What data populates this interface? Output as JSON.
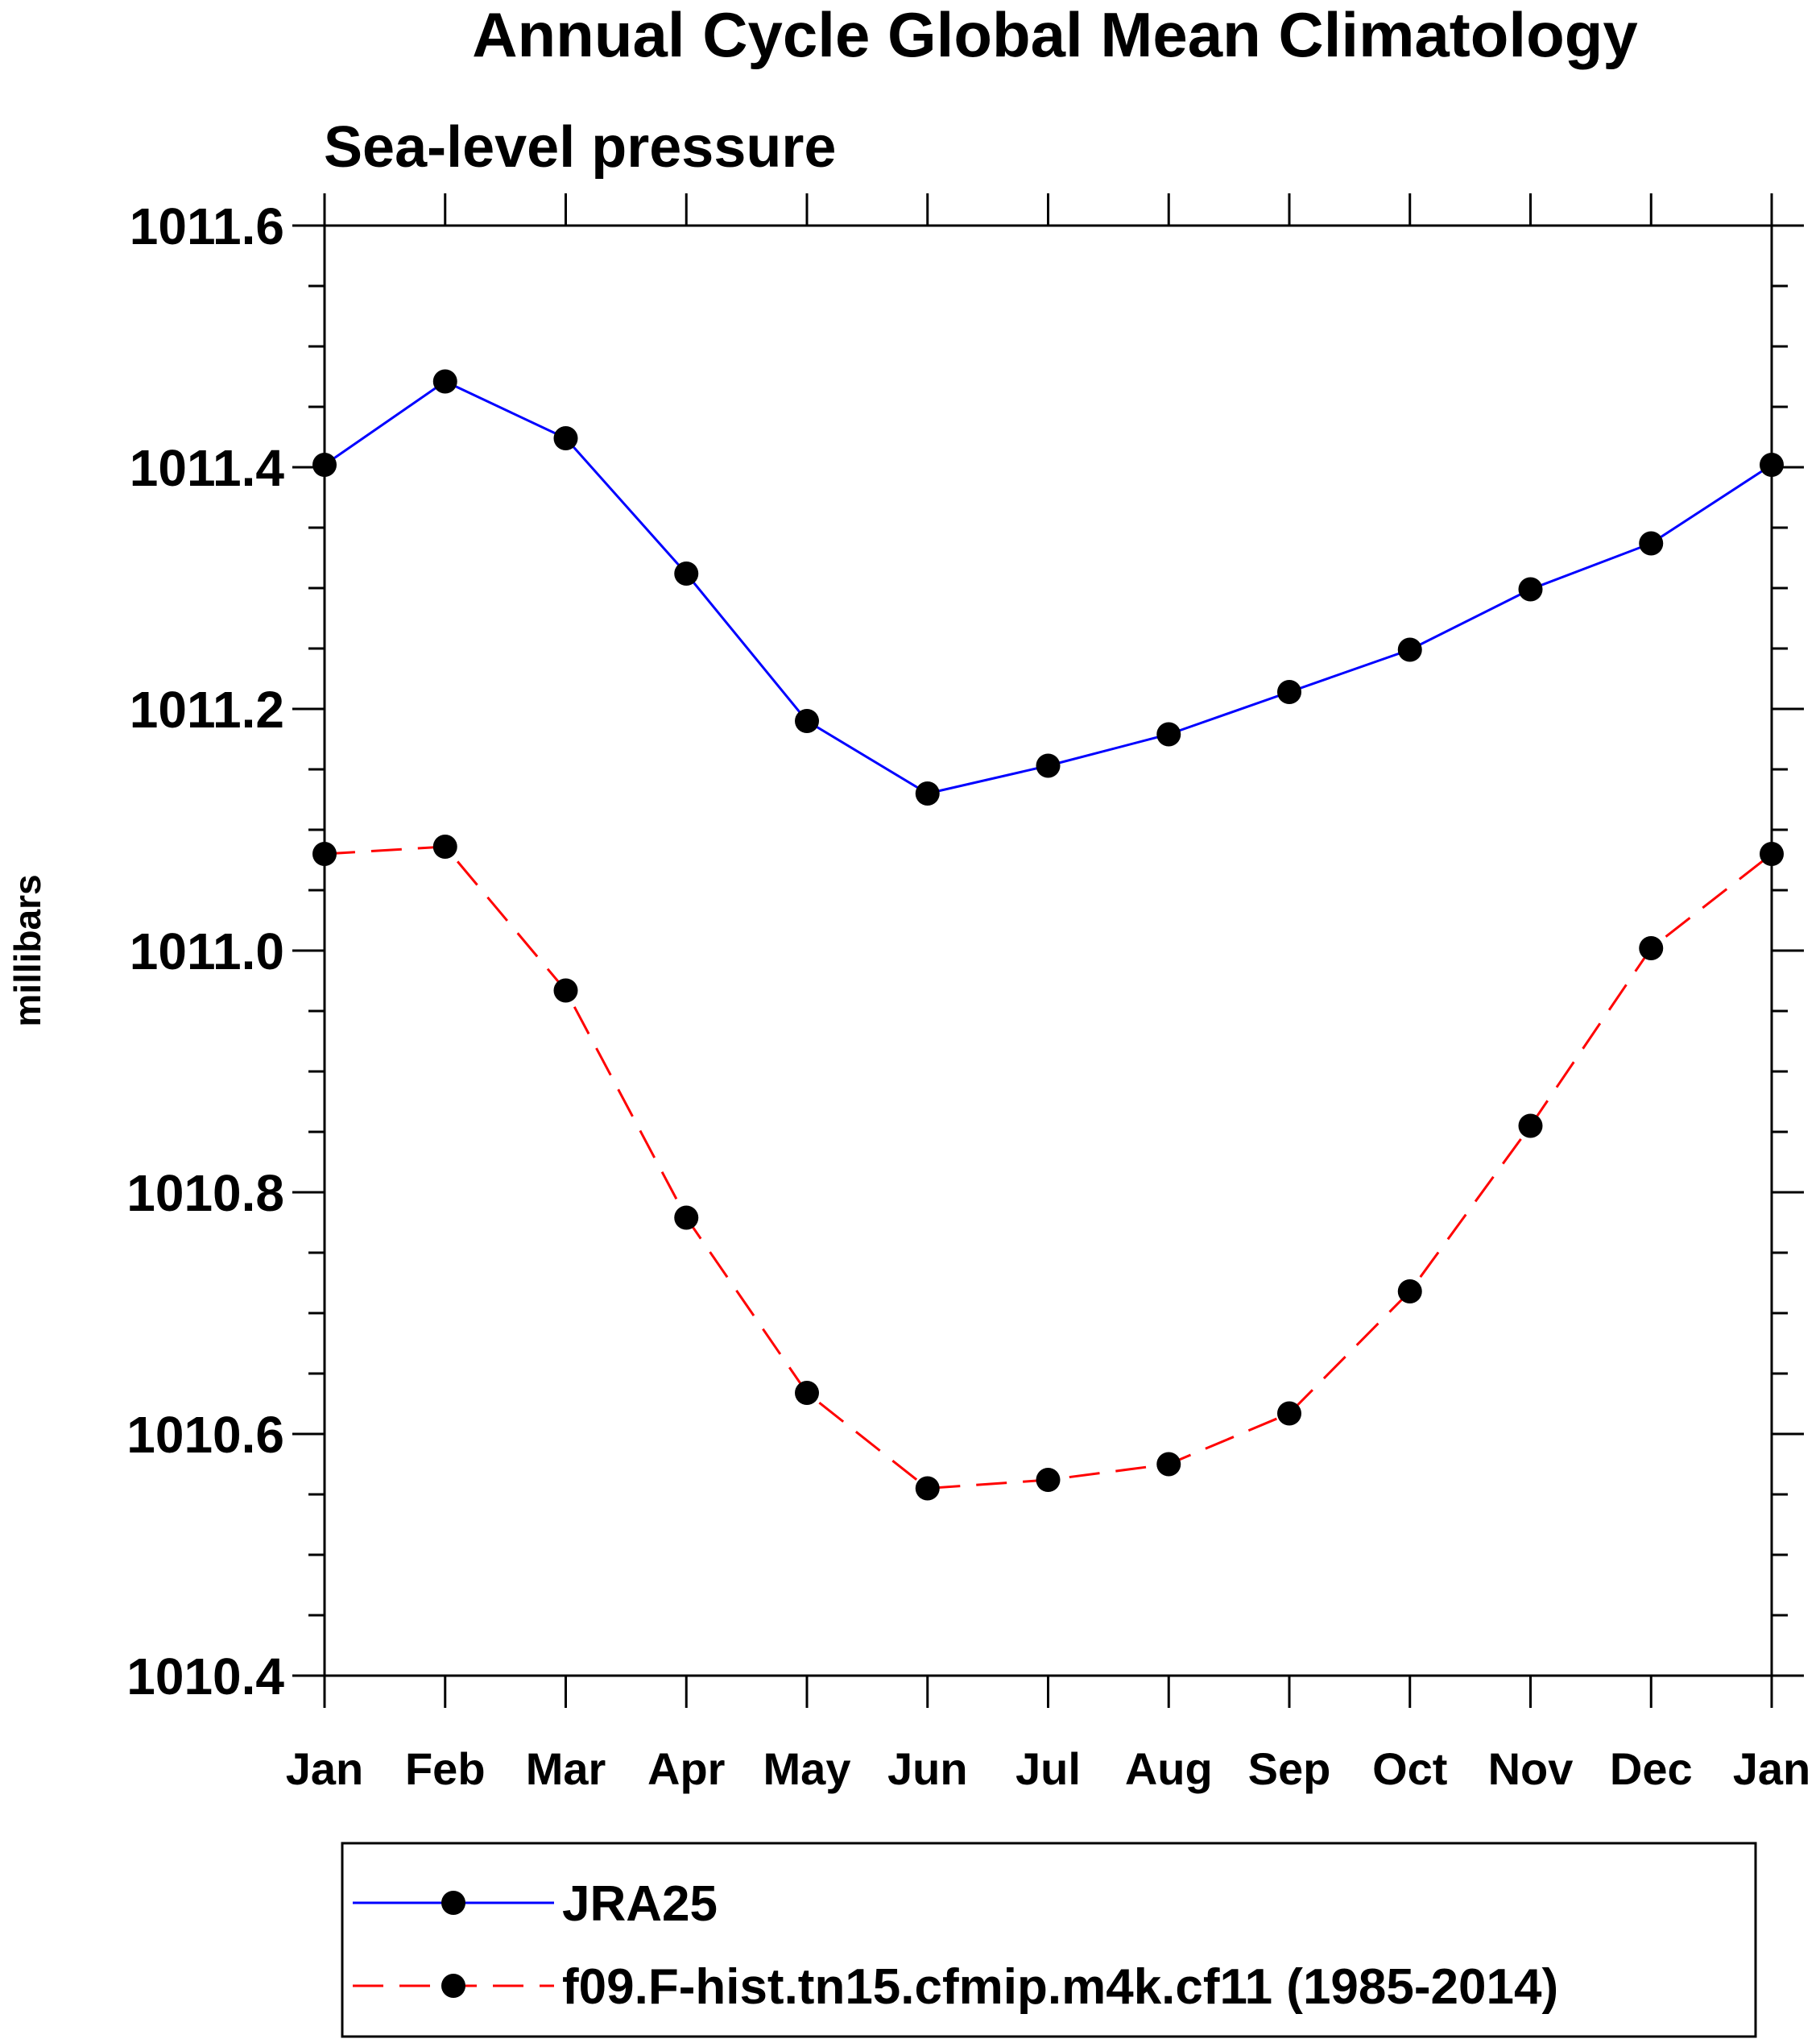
{
  "chart_data": {
    "type": "line",
    "title": "Annual Cycle Global Mean Climatology",
    "subtitle": "Sea-level pressure",
    "ylabel": "millibars",
    "xlabel": "",
    "categories": [
      "Jan",
      "Feb",
      "Mar",
      "Apr",
      "May",
      "Jun",
      "Jul",
      "Aug",
      "Sep",
      "Oct",
      "Nov",
      "Dec",
      "Jan"
    ],
    "ylim": [
      1010.4,
      1011.6
    ],
    "yticks": [
      "1010.4",
      "1010.6",
      "1010.8",
      "1011.0",
      "1011.2",
      "1011.4",
      "1011.6"
    ],
    "ytick_values": [
      1010.4,
      1010.6,
      1010.8,
      1011.0,
      1011.2,
      1011.4,
      1011.6
    ],
    "minor_ytick_step": 0.05,
    "series": [
      {
        "name": "JRA25",
        "color": "#0000ff",
        "dash": "solid",
        "marker": "filled-circle",
        "values": [
          1011.402,
          1011.471,
          1011.424,
          1011.312,
          1011.19,
          1011.13,
          1011.153,
          1011.179,
          1011.214,
          1011.249,
          1011.299,
          1011.337,
          1011.402
        ]
      },
      {
        "name": "f09.F-hist.tn15.cfmip.m4k.cf11 (1985-2014)",
        "color": "#ff0000",
        "dash": "dashed",
        "marker": "filled-circle",
        "values": [
          1011.08,
          1011.086,
          1010.967,
          1010.779,
          1010.634,
          1010.555,
          1010.562,
          1010.575,
          1010.617,
          1010.718,
          1010.855,
          1011.002,
          1011.08
        ]
      }
    ],
    "legend": {
      "placement": "bottom",
      "entries": [
        "JRA25",
        "f09.F-hist.tn15.cfmip.m4k.cf11 (1985-2014)"
      ]
    },
    "grid": false,
    "axis_color": "#000000",
    "marker_color": "#000000"
  }
}
